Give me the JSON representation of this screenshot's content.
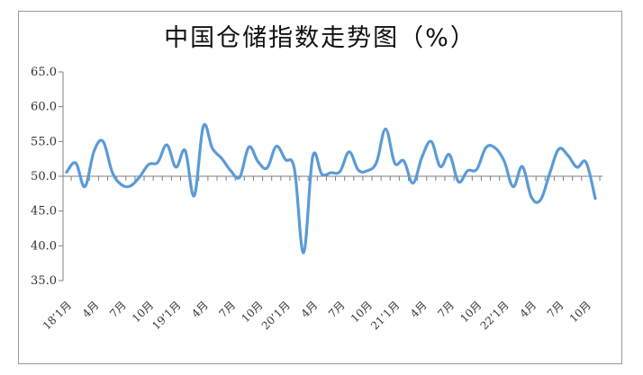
{
  "chart_data": {
    "type": "line",
    "title": "中国仓储指数走势图（%）",
    "xlabel": "",
    "ylabel": "",
    "ylim": [
      35.0,
      65.0
    ],
    "yticks": [
      "35.0",
      "40.0",
      "45.0",
      "50.0",
      "55.0",
      "60.0",
      "65.0"
    ],
    "baseline": 50.0,
    "grid": false,
    "line_color": "#5b9bd5",
    "tick_labels": [
      {
        "index": 0,
        "label": "18’1月"
      },
      {
        "index": 3,
        "label": "4月"
      },
      {
        "index": 6,
        "label": "7月"
      },
      {
        "index": 9,
        "label": "10月"
      },
      {
        "index": 12,
        "label": "19’1月"
      },
      {
        "index": 15,
        "label": "4月"
      },
      {
        "index": 18,
        "label": "7月"
      },
      {
        "index": 21,
        "label": "10月"
      },
      {
        "index": 24,
        "label": "20’1月"
      },
      {
        "index": 27,
        "label": "4月"
      },
      {
        "index": 30,
        "label": "7月"
      },
      {
        "index": 33,
        "label": "10月"
      },
      {
        "index": 36,
        "label": "21’1月"
      },
      {
        "index": 39,
        "label": "4月"
      },
      {
        "index": 42,
        "label": "7月"
      },
      {
        "index": 45,
        "label": "10月"
      },
      {
        "index": 48,
        "label": "22’1月"
      },
      {
        "index": 51,
        "label": "4月"
      },
      {
        "index": 54,
        "label": "7月"
      },
      {
        "index": 57,
        "label": "10月"
      }
    ],
    "values": [
      50.6,
      51.9,
      48.5,
      53.6,
      55.0,
      50.6,
      48.8,
      48.6,
      49.9,
      51.7,
      52.0,
      54.5,
      51.3,
      53.7,
      47.2,
      57.2,
      54.0,
      52.6,
      50.8,
      49.9,
      54.2,
      52.1,
      51.2,
      54.3,
      52.4,
      51.0,
      39.0,
      52.8,
      50.3,
      50.5,
      50.7,
      53.5,
      50.9,
      50.8,
      52.0,
      56.8,
      51.9,
      52.2,
      49.0,
      52.8,
      55.0,
      51.4,
      53.1,
      49.2,
      50.8,
      51.0,
      54.1,
      54.1,
      52.2,
      48.5,
      51.4,
      47.0,
      46.6,
      50.4,
      53.9,
      53.0,
      51.3,
      52.0,
      46.8
    ]
  }
}
